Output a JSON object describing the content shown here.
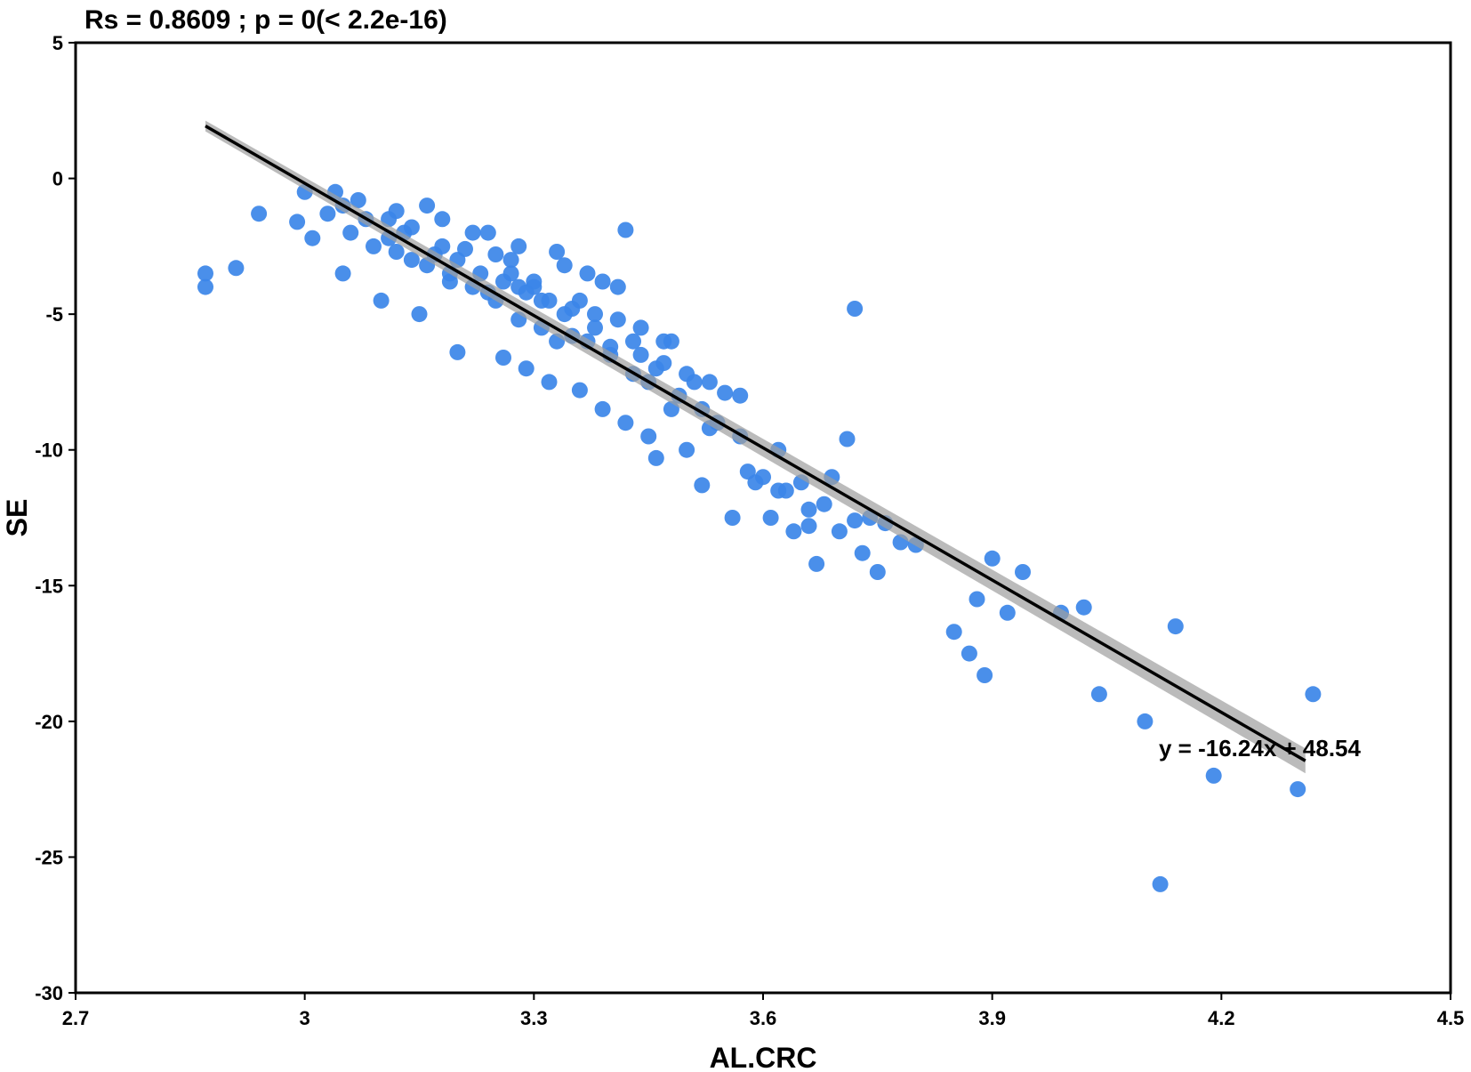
{
  "chart_data": {
    "type": "scatter",
    "title": "Rs = 0.8609 ; p = 0(< 2.2e-16)",
    "xlabel": "AL.CRC",
    "ylabel": "SE",
    "xlim": [
      2.7,
      4.5
    ],
    "ylim": [
      -30,
      5
    ],
    "xticks": [
      2.7,
      3.0,
      3.3,
      3.6,
      3.9,
      4.2,
      4.5
    ],
    "xtick_labels": [
      "2.7",
      "3",
      "3.3",
      "3.6",
      "3.9",
      "4.2",
      "4.5"
    ],
    "yticks": [
      5,
      0,
      -5,
      -10,
      -15,
      -20,
      -25,
      -30
    ],
    "ytick_labels": [
      "5",
      "0",
      "-5",
      "-10",
      "-15",
      "-20",
      "-25",
      "-30"
    ],
    "grid": false,
    "point_color": "#3b86e8",
    "line_color": "#000000",
    "band_color": "#9e9e9e",
    "regression": {
      "slope": -16.24,
      "intercept": 48.54,
      "x_range": [
        2.87,
        4.31
      ],
      "equation_label": "y = -16.24x + 48.54"
    },
    "x": [
      2.87,
      2.87,
      2.91,
      2.94,
      2.99,
      3.0,
      3.01,
      3.04,
      3.05,
      3.1,
      3.11,
      3.12,
      3.14,
      3.15,
      3.16,
      3.18,
      3.19,
      3.2,
      3.22,
      3.24,
      3.25,
      3.26,
      3.27,
      3.28,
      3.28,
      3.29,
      3.3,
      3.31,
      3.32,
      3.33,
      3.34,
      3.35,
      3.36,
      3.37,
      3.38,
      3.39,
      3.4,
      3.41,
      3.42,
      3.43,
      3.44,
      3.45,
      3.46,
      3.47,
      3.48,
      3.5,
      3.51,
      3.52,
      3.53,
      3.55,
      3.56,
      3.57,
      3.58,
      3.6,
      3.61,
      3.62,
      3.63,
      3.64,
      3.65,
      3.66,
      3.67,
      3.68,
      3.7,
      3.71,
      3.72,
      3.73,
      3.75,
      3.76,
      3.78,
      3.8,
      3.85,
      3.87,
      3.88,
      3.89,
      3.9,
      3.92,
      3.94,
      3.99,
      4.02,
      4.04,
      4.1,
      4.12,
      4.14,
      4.19,
      4.3,
      4.32,
      3.42,
      3.72,
      3.05,
      3.08,
      3.11,
      3.14,
      3.17,
      3.2,
      3.23,
      3.26,
      3.29,
      3.32,
      3.35,
      3.38,
      3.41,
      3.44,
      3.47,
      3.5,
      3.53,
      3.03,
      3.06,
      3.09,
      3.13,
      3.16,
      3.19,
      3.22,
      3.25,
      3.28,
      3.31,
      3.34,
      3.37,
      3.4,
      3.43,
      3.46,
      3.49,
      3.52,
      3.07,
      3.12,
      3.18,
      3.21,
      3.24,
      3.27,
      3.3,
      3.33,
      3.36,
      3.39,
      3.45,
      3.48,
      3.54,
      3.57,
      3.59,
      3.62,
      3.66,
      3.69,
      3.74
    ],
    "y": [
      -3.5,
      -4.0,
      -3.3,
      -1.3,
      -1.6,
      -0.5,
      -2.2,
      -0.5,
      -3.5,
      -4.5,
      -1.5,
      -2.7,
      -3.0,
      -5.0,
      -1.0,
      -2.5,
      -3.8,
      -6.4,
      -2.0,
      -4.2,
      -2.8,
      -6.6,
      -3.5,
      -5.2,
      -2.5,
      -7.0,
      -4.0,
      -4.5,
      -7.5,
      -6.0,
      -3.2,
      -5.8,
      -7.8,
      -3.5,
      -5.0,
      -8.5,
      -6.2,
      -4.0,
      -9.0,
      -7.2,
      -5.5,
      -9.5,
      -10.3,
      -6.0,
      -8.5,
      -10.0,
      -7.5,
      -11.3,
      -9.2,
      -7.9,
      -12.5,
      -8.0,
      -10.8,
      -11.0,
      -12.5,
      -10.0,
      -11.5,
      -13.0,
      -11.2,
      -12.8,
      -14.2,
      -12.0,
      -13.0,
      -9.6,
      -12.6,
      -13.8,
      -14.5,
      -12.7,
      -13.4,
      -13.5,
      -16.7,
      -17.5,
      -15.5,
      -18.3,
      -14.0,
      -16.0,
      -14.5,
      -16.0,
      -15.8,
      -19.0,
      -20.0,
      -26.0,
      -16.5,
      -22.0,
      -22.5,
      -19.0,
      -1.9,
      -4.8,
      -1.0,
      -1.5,
      -2.2,
      -1.8,
      -2.8,
      -3.0,
      -3.5,
      -3.8,
      -4.2,
      -4.5,
      -4.8,
      -5.5,
      -5.2,
      -6.5,
      -6.8,
      -7.2,
      -7.5,
      -1.3,
      -2.0,
      -2.5,
      -2.0,
      -3.2,
      -3.5,
      -4.0,
      -4.5,
      -4.0,
      -5.5,
      -5.0,
      -6.0,
      -6.5,
      -6.0,
      -7.0,
      -8.0,
      -8.5,
      -0.8,
      -1.2,
      -1.5,
      -2.6,
      -2.0,
      -3.0,
      -3.8,
      -2.7,
      -4.5,
      -3.8,
      -7.5,
      -6.0,
      -9.0,
      -9.5,
      -11.2,
      -11.5,
      -12.2,
      -11.0,
      -12.5
    ]
  }
}
